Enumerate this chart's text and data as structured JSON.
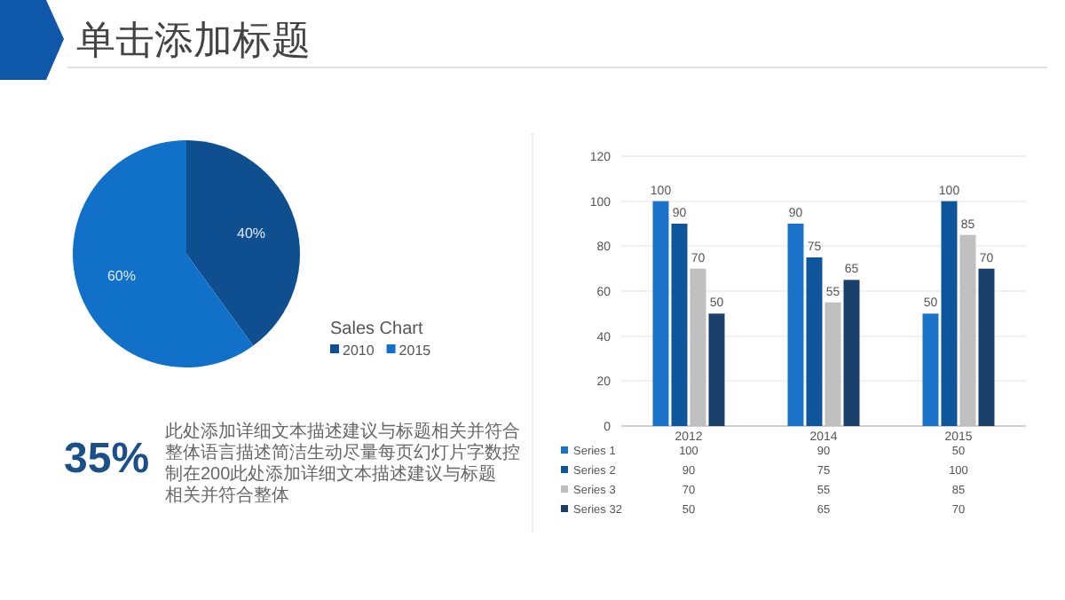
{
  "chart_data": [
    {
      "type": "other",
      "title": "单击添加标题"
    },
    {
      "type": "pie",
      "title": "Sales Chart",
      "categories": [
        "2010",
        "2015"
      ],
      "values": [
        40,
        60
      ],
      "colors": [
        "#0f4f8f",
        "#1170c7"
      ],
      "value_labels": [
        "40%",
        "60%"
      ],
      "legend": "right",
      "annotations": [
        "35%",
        "此处添加详细文本描述建议与标题相关并符合整体语言描述简洁生动尽量每页幻灯片字数控制在200此处添加详细文本描述建议与标题相关并符合整体"
      ]
    },
    {
      "type": "bar",
      "categories": [
        "2012",
        "2014",
        "2015"
      ],
      "series": [
        {
          "name": "Series 1",
          "color": "#1a73c8",
          "values": [
            100,
            90,
            50
          ],
          "value_labels": [
            "100",
            "90",
            "50"
          ]
        },
        {
          "name": "Series 2",
          "color": "#0e559c",
          "values": [
            90,
            75,
            100
          ],
          "value_labels": [
            "90",
            "75",
            "100"
          ]
        },
        {
          "name": "Series 3",
          "color": "#bfbfbf",
          "values": [
            70,
            55,
            85
          ],
          "value_labels": [
            "70",
            "55",
            "85"
          ]
        },
        {
          "name": "Series 32",
          "color": "#1a3f6b",
          "values": [
            50,
            65,
            70
          ],
          "value_labels": [
            "50",
            "65",
            "70"
          ]
        }
      ],
      "ylim": [
        0,
        120
      ],
      "yticks": [
        0,
        20,
        40,
        60,
        80,
        100,
        120
      ],
      "grid": "y",
      "legend": "bottom",
      "annotations": [
        "100",
        "90",
        "50",
        "90",
        "75",
        "100",
        "70",
        "55",
        "85",
        "50",
        "65",
        "70"
      ]
    }
  ]
}
